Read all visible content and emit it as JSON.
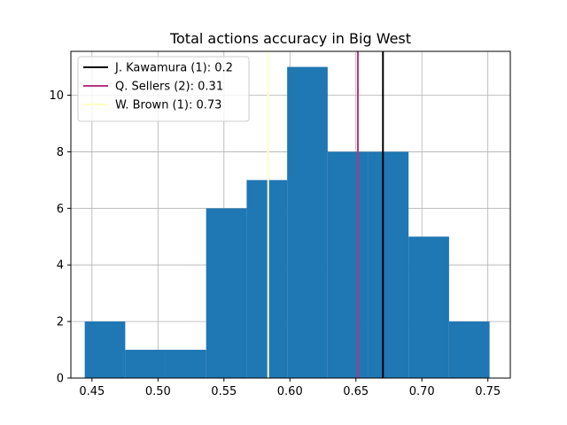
{
  "chart_data": {
    "type": "bar",
    "title": "Total actions accuracy in Big West",
    "xlabel": "",
    "ylabel": "",
    "xlim": [
      0.434,
      0.767
    ],
    "ylim": [
      0,
      11.55
    ],
    "grid": true,
    "bar_color": "#1f77b4",
    "bins": [
      {
        "x0": 0.4445,
        "x1": 0.4752,
        "count": 2
      },
      {
        "x0": 0.4752,
        "x1": 0.5058,
        "count": 1
      },
      {
        "x0": 0.5058,
        "x1": 0.5365,
        "count": 1
      },
      {
        "x0": 0.5365,
        "x1": 0.5672,
        "count": 6
      },
      {
        "x0": 0.5672,
        "x1": 0.5979,
        "count": 7
      },
      {
        "x0": 0.5979,
        "x1": 0.6286,
        "count": 11
      },
      {
        "x0": 0.6286,
        "x1": 0.6592,
        "count": 8
      },
      {
        "x0": 0.6592,
        "x1": 0.6899,
        "count": 8
      },
      {
        "x0": 0.6899,
        "x1": 0.7206,
        "count": 5
      },
      {
        "x0": 0.7206,
        "x1": 0.7513,
        "count": 2
      }
    ],
    "x_ticks": [
      {
        "value": 0.45,
        "label": "0.45"
      },
      {
        "value": 0.5,
        "label": "0.50"
      },
      {
        "value": 0.55,
        "label": "0.55"
      },
      {
        "value": 0.6,
        "label": "0.60"
      },
      {
        "value": 0.65,
        "label": "0.65"
      },
      {
        "value": 0.7,
        "label": "0.70"
      },
      {
        "value": 0.75,
        "label": "0.75"
      }
    ],
    "y_ticks": [
      {
        "value": 0,
        "label": "0"
      },
      {
        "value": 2,
        "label": "2"
      },
      {
        "value": 4,
        "label": "4"
      },
      {
        "value": 6,
        "label": "6"
      },
      {
        "value": 8,
        "label": "8"
      },
      {
        "value": 10,
        "label": "10"
      }
    ],
    "reference_lines": [
      {
        "name": "J. Kawamura (1): 0.2",
        "x": 0.6705,
        "color": "#000000"
      },
      {
        "name": "Q. Sellers (2): 0.31",
        "x": 0.6515,
        "color": "#b5367e"
      },
      {
        "name": "W. Brown (1): 0.73",
        "x": 0.5835,
        "color": "#ffffc4"
      }
    ],
    "legend_position": "top-left"
  }
}
